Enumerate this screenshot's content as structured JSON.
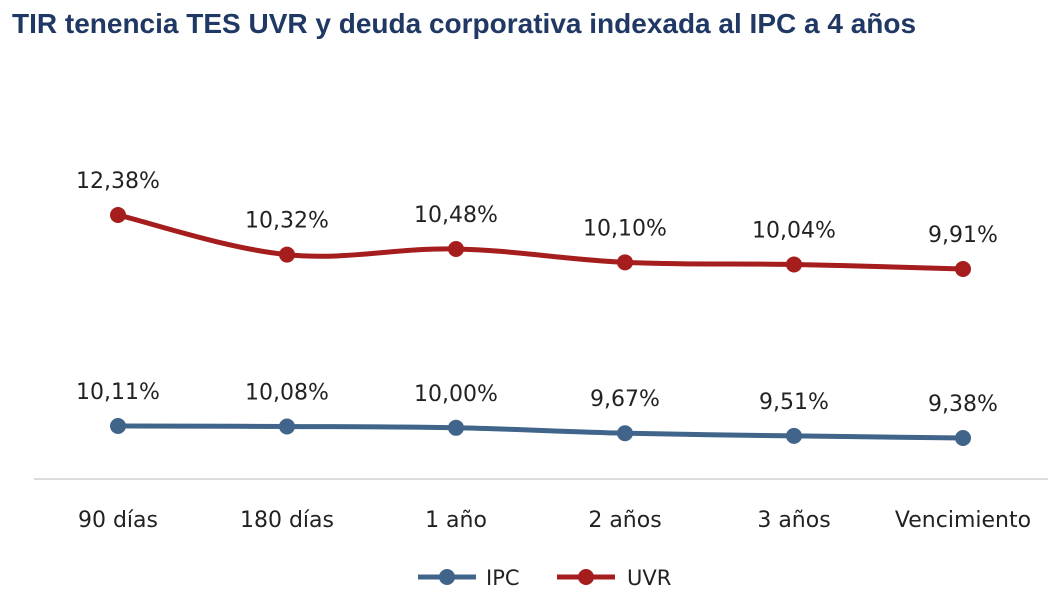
{
  "chart_data": {
    "type": "line",
    "title": "TIR tenencia TES UVR y deuda corporativa indexada al IPC a 4 años",
    "categories": [
      "90 días",
      "180 días",
      "1 año",
      "2 años",
      "3 años",
      "Vencimiento"
    ],
    "series": [
      {
        "name": "IPC",
        "color": "#41648a",
        "values": [
          10.11,
          10.08,
          10.0,
          9.67,
          9.51,
          9.38
        ],
        "labels": [
          "10,11%",
          "10,08%",
          "10,00%",
          "9,67%",
          "9,51%",
          "9,38%"
        ]
      },
      {
        "name": "UVR",
        "color": "#a51d1d",
        "values": [
          12.38,
          10.32,
          10.48,
          10.1,
          10.04,
          9.91
        ],
        "labels": [
          "12,38%",
          "10,32%",
          "10,48%",
          "10,10%",
          "10,04%",
          "9,91%"
        ]
      }
    ],
    "grid": false,
    "legend_position": "bottom",
    "xlabel": "",
    "ylabel": ""
  }
}
